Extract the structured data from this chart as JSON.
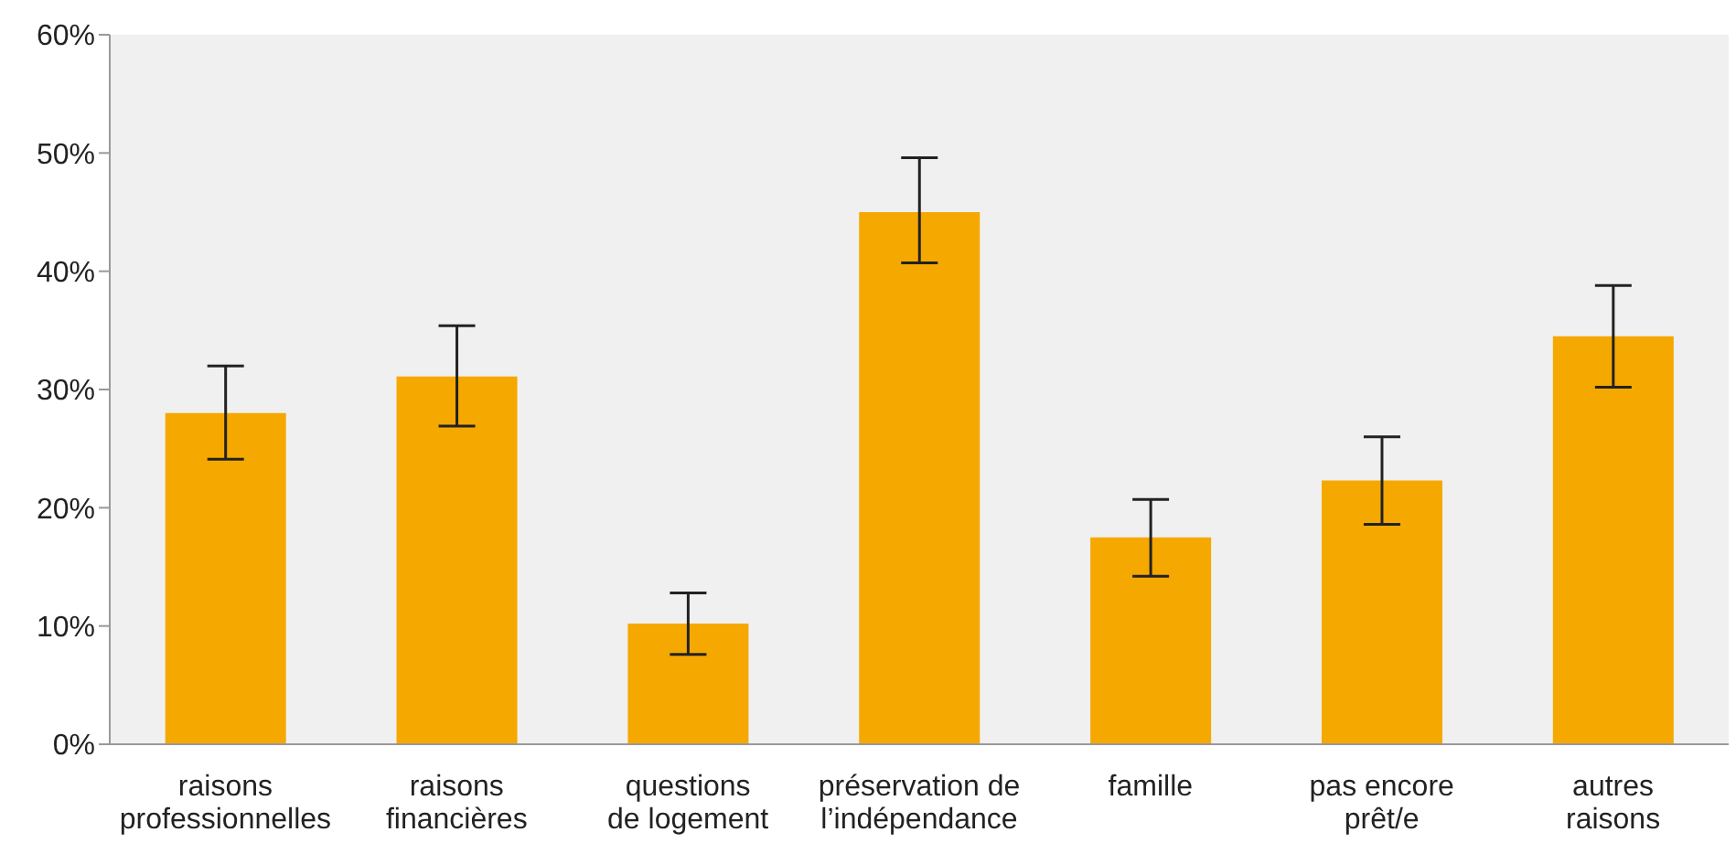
{
  "chart_data": {
    "type": "bar",
    "categories": [
      "raisons\nprofessionnelles",
      "raisons\nfinancières",
      "questions\nde logement",
      "préservation de\nl’indépendance",
      "famille",
      "pas encore\nprêt/e",
      "autres\nraisons"
    ],
    "values": [
      28,
      31.1,
      10.2,
      45,
      17.5,
      22.3,
      34.5
    ],
    "errors": [
      [
        24.1,
        32
      ],
      [
        26.9,
        35.4
      ],
      [
        7.6,
        12.8
      ],
      [
        40.7,
        49.6
      ],
      [
        14.2,
        20.7
      ],
      [
        18.6,
        26
      ],
      [
        30.2,
        38.8
      ]
    ],
    "color": "#f5a800",
    "ylim": [
      0,
      60
    ],
    "yticks": [
      {
        "value": 0,
        "label": "0%"
      },
      {
        "value": 10,
        "label": "10%"
      },
      {
        "value": 20,
        "label": "20%"
      },
      {
        "value": 30,
        "label": "30%"
      },
      {
        "value": 40,
        "label": "40%"
      },
      {
        "value": 50,
        "label": "50%"
      },
      {
        "value": 60,
        "label": "60%"
      }
    ],
    "grid": false,
    "legend": false
  }
}
